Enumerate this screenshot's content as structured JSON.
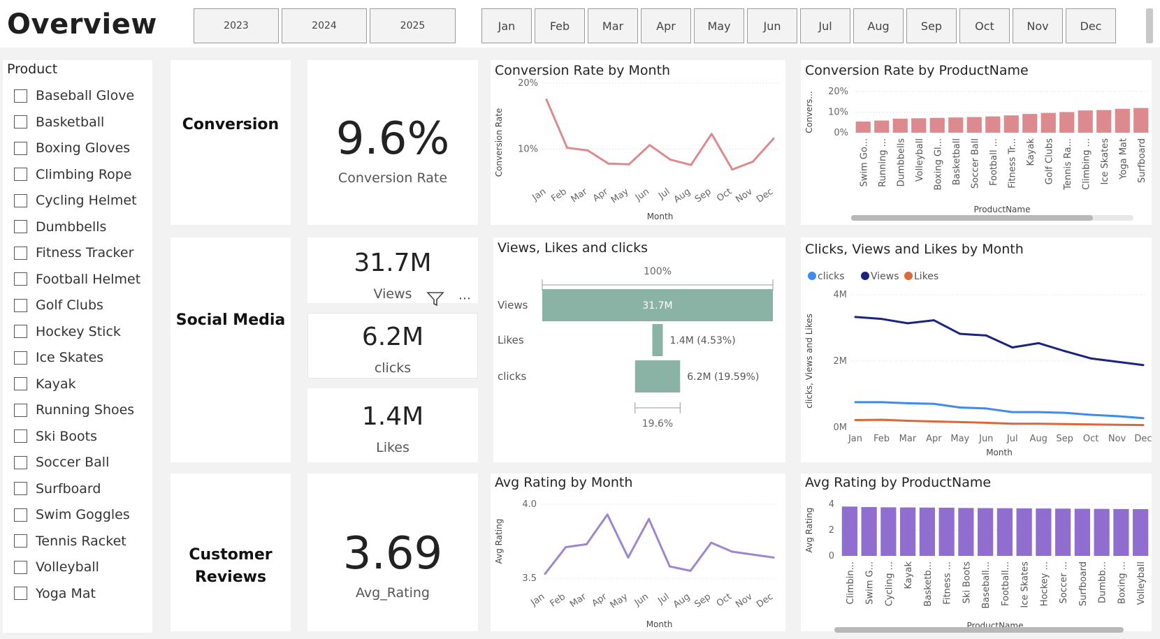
{
  "page": {
    "title": "Overview"
  },
  "filters": {
    "years": [
      "2023",
      "2024",
      "2025"
    ],
    "months": [
      "Jan",
      "Feb",
      "Mar",
      "Apr",
      "May",
      "Jun",
      "Jul",
      "Aug",
      "Sep",
      "Oct",
      "Nov",
      "Dec"
    ]
  },
  "slicer": {
    "title": "Product",
    "items": [
      "Baseball Glove",
      "Basketball",
      "Boxing Gloves",
      "Climbing Rope",
      "Cycling Helmet",
      "Dumbbells",
      "Fitness Tracker",
      "Football Helmet",
      "Golf Clubs",
      "Hockey Stick",
      "Ice Skates",
      "Kayak",
      "Running Shoes",
      "Ski Boots",
      "Soccer Ball",
      "Surfboard",
      "Swim Goggles",
      "Tennis Racket",
      "Volleyball",
      "Yoga Mat"
    ]
  },
  "sections": {
    "conversion": "Conversion",
    "social": "Social Media",
    "reviews_line1": "Customer",
    "reviews_line2": "Reviews"
  },
  "kpis": {
    "conversion": {
      "value": "9.6%",
      "label": "Conversion Rate"
    },
    "views": {
      "value": "31.7M",
      "label": "Views"
    },
    "clicks": {
      "value": "6.2M",
      "label": "clicks"
    },
    "likes": {
      "value": "1.4M",
      "label": "Likes"
    },
    "rating": {
      "value": "3.69",
      "label": "Avg_Rating"
    }
  },
  "icons": {
    "filter": "filter-icon",
    "more": "more-options-icon"
  },
  "colors": {
    "conversion": "#dc8a8e",
    "funnel": "#8ab3a5",
    "rating": "#9e86cf",
    "rating_bar": "#8f6ed0",
    "clicks": "#3d8bf0",
    "views": "#1a237e",
    "likes": "#d9693a"
  },
  "chart_data": [
    {
      "id": "conv_month",
      "type": "line",
      "title": "Conversion Rate by Month",
      "xlabel": "Month",
      "ylabel": "Conversion Rate",
      "x": [
        "Jan",
        "Feb",
        "Mar",
        "Apr",
        "May",
        "Jun",
        "Jul",
        "Aug",
        "Sep",
        "Oct",
        "Nov",
        "Dec"
      ],
      "y_ticks": [
        "20%",
        "10%"
      ],
      "ylim": [
        0,
        22
      ],
      "series": [
        {
          "values": [
            17.5,
            10.2,
            9.8,
            7.8,
            7.7,
            10.6,
            8.4,
            7.6,
            12.3,
            6.9,
            8.1,
            11.6
          ]
        }
      ],
      "grid": true
    },
    {
      "id": "conv_product",
      "type": "bar",
      "title": "Conversion Rate by ProductName",
      "xlabel": "ProductName",
      "ylabel": "Convers...",
      "categories": [
        "Swim Go...",
        "Running ...",
        "Dumbbells",
        "Volleyball",
        "Boxing Gl...",
        "Basketball",
        "Soccer Ball",
        "Football ...",
        "Fitness Tr...",
        "Kayak",
        "Golf Clubs",
        "Tennis Ra...",
        "Climbing ...",
        "Ice Skates",
        "Yoga Mat",
        "Surfboard"
      ],
      "values": [
        5.4,
        5.9,
        6.8,
        7.0,
        7.2,
        7.4,
        7.6,
        7.9,
        8.4,
        9.1,
        9.6,
        10.0,
        10.8,
        11.0,
        11.6,
        12.0
      ],
      "y_ticks": [
        "20%",
        "10%",
        "0%"
      ],
      "ylim": [
        0,
        20
      ],
      "grid": true
    },
    {
      "id": "funnel",
      "type": "funnel",
      "title": "Views, Likes and clicks",
      "top_label": "100%",
      "bottom_label": "19.6%",
      "stages": [
        {
          "name": "Views",
          "value": 31.7,
          "label": "31.7M"
        },
        {
          "name": "Likes",
          "value": 1.44,
          "label": "1.4M (4.53%)"
        },
        {
          "name": "clicks",
          "value": 6.2,
          "label": "6.2M (19.59%)"
        }
      ]
    },
    {
      "id": "cvl_month",
      "type": "line",
      "title": "Clicks, Views and Likes by Month",
      "xlabel": "Month",
      "ylabel": "clicks, Views and Likes",
      "x": [
        "Jan",
        "Feb",
        "Mar",
        "Apr",
        "May",
        "Jun",
        "Jul",
        "Aug",
        "Sep",
        "Oct",
        "Nov",
        "Dec"
      ],
      "y_ticks": [
        "4M",
        "2M",
        "0M"
      ],
      "ylim": [
        0,
        4
      ],
      "legend": "top-left",
      "series": [
        {
          "name": "clicks",
          "values": [
            0.76,
            0.76,
            0.73,
            0.71,
            0.6,
            0.57,
            0.46,
            0.46,
            0.44,
            0.38,
            0.34,
            0.28
          ]
        },
        {
          "name": "Views",
          "values": [
            3.33,
            3.27,
            3.14,
            3.23,
            2.82,
            2.77,
            2.41,
            2.54,
            2.3,
            2.08,
            1.98,
            1.88
          ]
        },
        {
          "name": "Likes",
          "values": [
            0.22,
            0.23,
            0.2,
            0.18,
            0.16,
            0.14,
            0.11,
            0.11,
            0.1,
            0.09,
            0.08,
            0.07
          ]
        }
      ],
      "grid": true
    },
    {
      "id": "rating_month",
      "type": "line",
      "title": "Avg Rating by Month",
      "xlabel": "Month",
      "ylabel": "Avg Rating",
      "x": [
        "Jan",
        "Feb",
        "Mar",
        "Apr",
        "May",
        "Jun",
        "Jul",
        "Aug",
        "Sep",
        "Oct",
        "Nov",
        "Dec"
      ],
      "y_ticks": [
        "4.0",
        "3.5"
      ],
      "ylim": [
        3.5,
        4.0
      ],
      "series": [
        {
          "values": [
            3.53,
            3.71,
            3.73,
            3.93,
            3.64,
            3.9,
            3.58,
            3.55,
            3.74,
            3.68,
            3.66,
            3.64
          ]
        }
      ],
      "grid": true
    },
    {
      "id": "rating_product",
      "type": "bar",
      "title": "Avg Rating by ProductName",
      "xlabel": "ProductName",
      "ylabel": "Avg Rating",
      "categories": [
        "Climbin...",
        "Swim G...",
        "Cycling ...",
        "Kayak",
        "Basketb...",
        "Fitness ...",
        "Ski Boots",
        "Baseball...",
        "Football...",
        "Ice Skates",
        "Hockey ...",
        "Soccer ...",
        "Surfboard",
        "Dumbb...",
        "Boxing ...",
        "Volleyball"
      ],
      "values": [
        3.82,
        3.78,
        3.76,
        3.75,
        3.74,
        3.73,
        3.71,
        3.7,
        3.69,
        3.68,
        3.67,
        3.66,
        3.65,
        3.64,
        3.63,
        3.62
      ],
      "y_ticks": [
        "4",
        "2",
        "0"
      ],
      "ylim": [
        0,
        4
      ],
      "grid": true
    }
  ]
}
